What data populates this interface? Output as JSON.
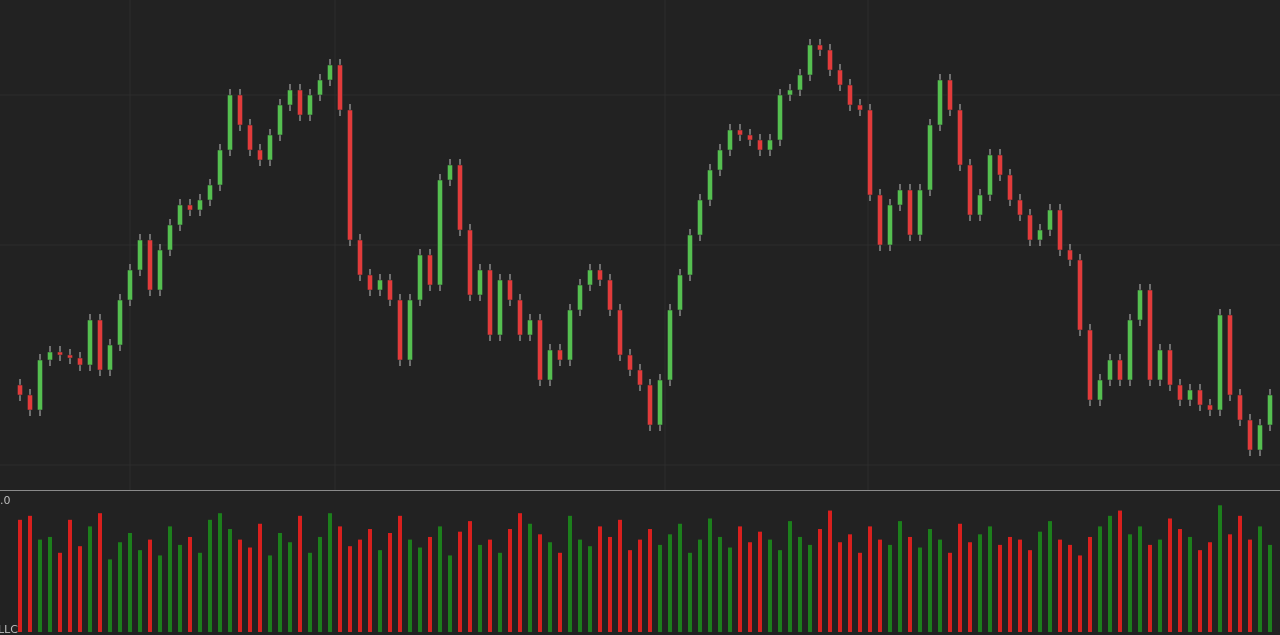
{
  "chart_data": {
    "type": "candlestick",
    "volume_label": ".0",
    "footer_label": "LLC",
    "ylim": [
      0,
      480
    ],
    "volume_ylim": [
      0,
      100
    ],
    "up_color": "#55c050",
    "down_color": "#e23b3b",
    "volume_up_color": "#1c7f1c",
    "volume_down_color": "#d8201e",
    "open": [
      95,
      85,
      70,
      120,
      128,
      125,
      122,
      115,
      160,
      110,
      135,
      180,
      210,
      240,
      190,
      230,
      255,
      275,
      270,
      280,
      295,
      330,
      385,
      355,
      330,
      320,
      345,
      375,
      390,
      365,
      385,
      400,
      415,
      370,
      240,
      205,
      190,
      200,
      180,
      120,
      180,
      225,
      195,
      300,
      315,
      250,
      185,
      210,
      145,
      200,
      180,
      145,
      160,
      100,
      130,
      120,
      170,
      195,
      210,
      200,
      170,
      125,
      110,
      95,
      55,
      100,
      170,
      205,
      245,
      280,
      310,
      330,
      350,
      345,
      340,
      330,
      340,
      385,
      390,
      405,
      435,
      430,
      410,
      395,
      375,
      370,
      285,
      235,
      275,
      290,
      245,
      290,
      355,
      400,
      370,
      315,
      265,
      285,
      325,
      305,
      280,
      265,
      240,
      250,
      270,
      230,
      220,
      150,
      80,
      100,
      120,
      100,
      160,
      190,
      100,
      130,
      95,
      80,
      90,
      75,
      70,
      165,
      85,
      60,
      30,
      55
    ],
    "high": [
      101,
      91,
      126,
      134,
      134,
      131,
      128,
      166,
      166,
      141,
      186,
      216,
      246,
      246,
      236,
      261,
      281,
      281,
      286,
      301,
      336,
      391,
      391,
      361,
      336,
      351,
      381,
      396,
      396,
      391,
      406,
      421,
      421,
      376,
      246,
      211,
      206,
      206,
      186,
      186,
      231,
      231,
      306,
      321,
      321,
      256,
      216,
      216,
      206,
      206,
      186,
      166,
      166,
      136,
      136,
      176,
      201,
      216,
      216,
      206,
      176,
      131,
      116,
      101,
      106,
      176,
      211,
      251,
      286,
      316,
      336,
      356,
      356,
      351,
      346,
      346,
      391,
      396,
      411,
      441,
      441,
      436,
      416,
      401,
      381,
      376,
      291,
      281,
      296,
      296,
      296,
      361,
      406,
      406,
      376,
      321,
      291,
      331,
      331,
      311,
      286,
      271,
      256,
      276,
      276,
      236,
      226,
      156,
      106,
      126,
      126,
      166,
      196,
      196,
      136,
      136,
      101,
      96,
      96,
      81,
      171,
      171,
      91,
      66,
      61,
      91
    ],
    "low": [
      79,
      64,
      64,
      114,
      119,
      116,
      109,
      109,
      104,
      104,
      129,
      174,
      204,
      184,
      184,
      224,
      249,
      264,
      264,
      274,
      289,
      324,
      349,
      324,
      314,
      314,
      339,
      369,
      359,
      359,
      379,
      394,
      364,
      234,
      199,
      184,
      184,
      174,
      114,
      114,
      174,
      189,
      189,
      294,
      244,
      179,
      179,
      139,
      139,
      174,
      139,
      139,
      94,
      94,
      114,
      114,
      164,
      189,
      194,
      164,
      119,
      104,
      89,
      49,
      49,
      94,
      164,
      199,
      239,
      274,
      304,
      324,
      339,
      334,
      324,
      324,
      334,
      379,
      384,
      399,
      424,
      404,
      389,
      369,
      364,
      279,
      229,
      229,
      269,
      239,
      239,
      284,
      349,
      364,
      309,
      259,
      259,
      279,
      299,
      274,
      259,
      234,
      234,
      244,
      224,
      214,
      144,
      74,
      74,
      94,
      94,
      94,
      154,
      94,
      94,
      89,
      74,
      74,
      69,
      64,
      64,
      79,
      54,
      24,
      24,
      49
    ],
    "close": [
      85,
      70,
      120,
      128,
      125,
      122,
      115,
      160,
      110,
      135,
      180,
      210,
      240,
      190,
      230,
      255,
      275,
      270,
      280,
      295,
      330,
      385,
      355,
      330,
      320,
      345,
      375,
      390,
      365,
      385,
      400,
      415,
      370,
      240,
      205,
      190,
      200,
      180,
      120,
      180,
      225,
      195,
      300,
      315,
      250,
      185,
      210,
      145,
      200,
      180,
      145,
      160,
      100,
      130,
      120,
      170,
      195,
      210,
      200,
      170,
      125,
      110,
      95,
      55,
      100,
      170,
      205,
      245,
      280,
      310,
      330,
      350,
      345,
      340,
      330,
      340,
      385,
      390,
      405,
      435,
      430,
      410,
      395,
      375,
      370,
      285,
      235,
      275,
      290,
      245,
      290,
      355,
      400,
      370,
      315,
      265,
      285,
      325,
      305,
      280,
      265,
      240,
      250,
      270,
      230,
      220,
      150,
      80,
      100,
      120,
      100,
      160,
      190,
      100,
      130,
      95,
      80,
      90,
      75,
      70,
      165,
      85,
      60,
      30,
      55,
      85
    ],
    "volume": [
      85,
      88,
      70,
      72,
      60,
      85,
      65,
      80,
      90,
      55,
      68,
      75,
      62,
      70,
      58,
      80,
      66,
      72,
      60,
      85,
      90,
      78,
      70,
      64,
      82,
      58,
      75,
      68,
      88,
      60,
      72,
      90,
      80,
      65,
      70,
      78,
      62,
      75,
      88,
      70,
      64,
      72,
      80,
      58,
      76,
      84,
      66,
      70,
      60,
      78,
      90,
      82,
      74,
      68,
      60,
      88,
      70,
      65,
      80,
      72,
      85,
      62,
      70,
      78,
      66,
      74,
      82,
      60,
      70,
      86,
      72,
      64,
      80,
      68,
      76,
      70,
      62,
      84,
      72,
      66,
      78,
      92,
      68,
      74,
      60,
      80,
      70,
      66,
      84,
      72,
      64,
      78,
      70,
      60,
      82,
      68,
      74,
      80,
      66,
      72,
      70,
      62,
      76,
      84,
      70,
      66,
      58,
      72,
      80,
      88,
      92,
      74,
      80,
      66,
      70,
      86,
      78,
      72,
      62,
      68,
      96,
      74,
      88,
      70,
      80,
      66
    ]
  }
}
